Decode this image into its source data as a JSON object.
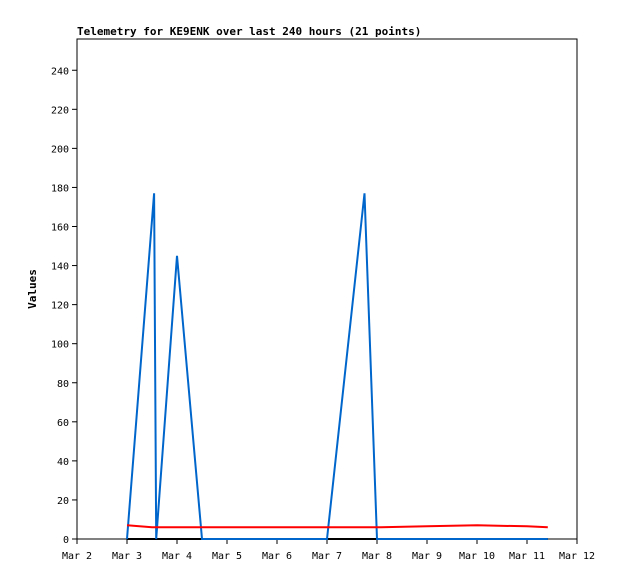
{
  "chart_data": {
    "type": "line",
    "title": "Telemetry for KE9ENK over last 240 hours (21 points)",
    "xlabel": "",
    "ylabel": "Values",
    "x_ticks": [
      "Mar 2",
      "Mar 3",
      "Mar 4",
      "Mar 5",
      "Mar 6",
      "Mar 7",
      "Mar 8",
      "Mar 9",
      "Mar 10",
      "Mar 11",
      "Mar 12"
    ],
    "y_ticks": [
      0,
      20,
      40,
      60,
      80,
      100,
      120,
      140,
      160,
      180,
      200,
      220,
      240
    ],
    "xlim": [
      "2024-03-02T00:00",
      "2024-03-12T00:00"
    ],
    "ylim": [
      0,
      256
    ],
    "grid": false,
    "legend": "none",
    "series": [
      {
        "color": "#000000",
        "points": [
          [
            "2024-03-03T00:00",
            0
          ],
          [
            "2024-03-11T10:00",
            0
          ]
        ]
      },
      {
        "color": "#0066cc",
        "points": [
          [
            "2024-03-03T00:00",
            0
          ],
          [
            "2024-03-03T13:00",
            177
          ],
          [
            "2024-03-03T14:00",
            0
          ],
          [
            "2024-03-04T00:00",
            145
          ],
          [
            "2024-03-04T12:00",
            0
          ],
          [
            "2024-03-07T00:00",
            0
          ],
          [
            "2024-03-07T18:00",
            177
          ],
          [
            "2024-03-08T00:00",
            0
          ],
          [
            "2024-03-11T10:00",
            0
          ]
        ]
      },
      {
        "color": "#ff0000",
        "points": [
          [
            "2024-03-03T00:00",
            7
          ],
          [
            "2024-03-03T12:00",
            6
          ],
          [
            "2024-03-04T00:00",
            6
          ],
          [
            "2024-03-05T00:00",
            6
          ],
          [
            "2024-03-06T00:00",
            6
          ],
          [
            "2024-03-07T00:00",
            6
          ],
          [
            "2024-03-08T00:00",
            6
          ],
          [
            "2024-03-09T00:00",
            6.5
          ],
          [
            "2024-03-10T00:00",
            7
          ],
          [
            "2024-03-11T00:00",
            6.5
          ],
          [
            "2024-03-11T10:00",
            6
          ]
        ]
      }
    ]
  }
}
